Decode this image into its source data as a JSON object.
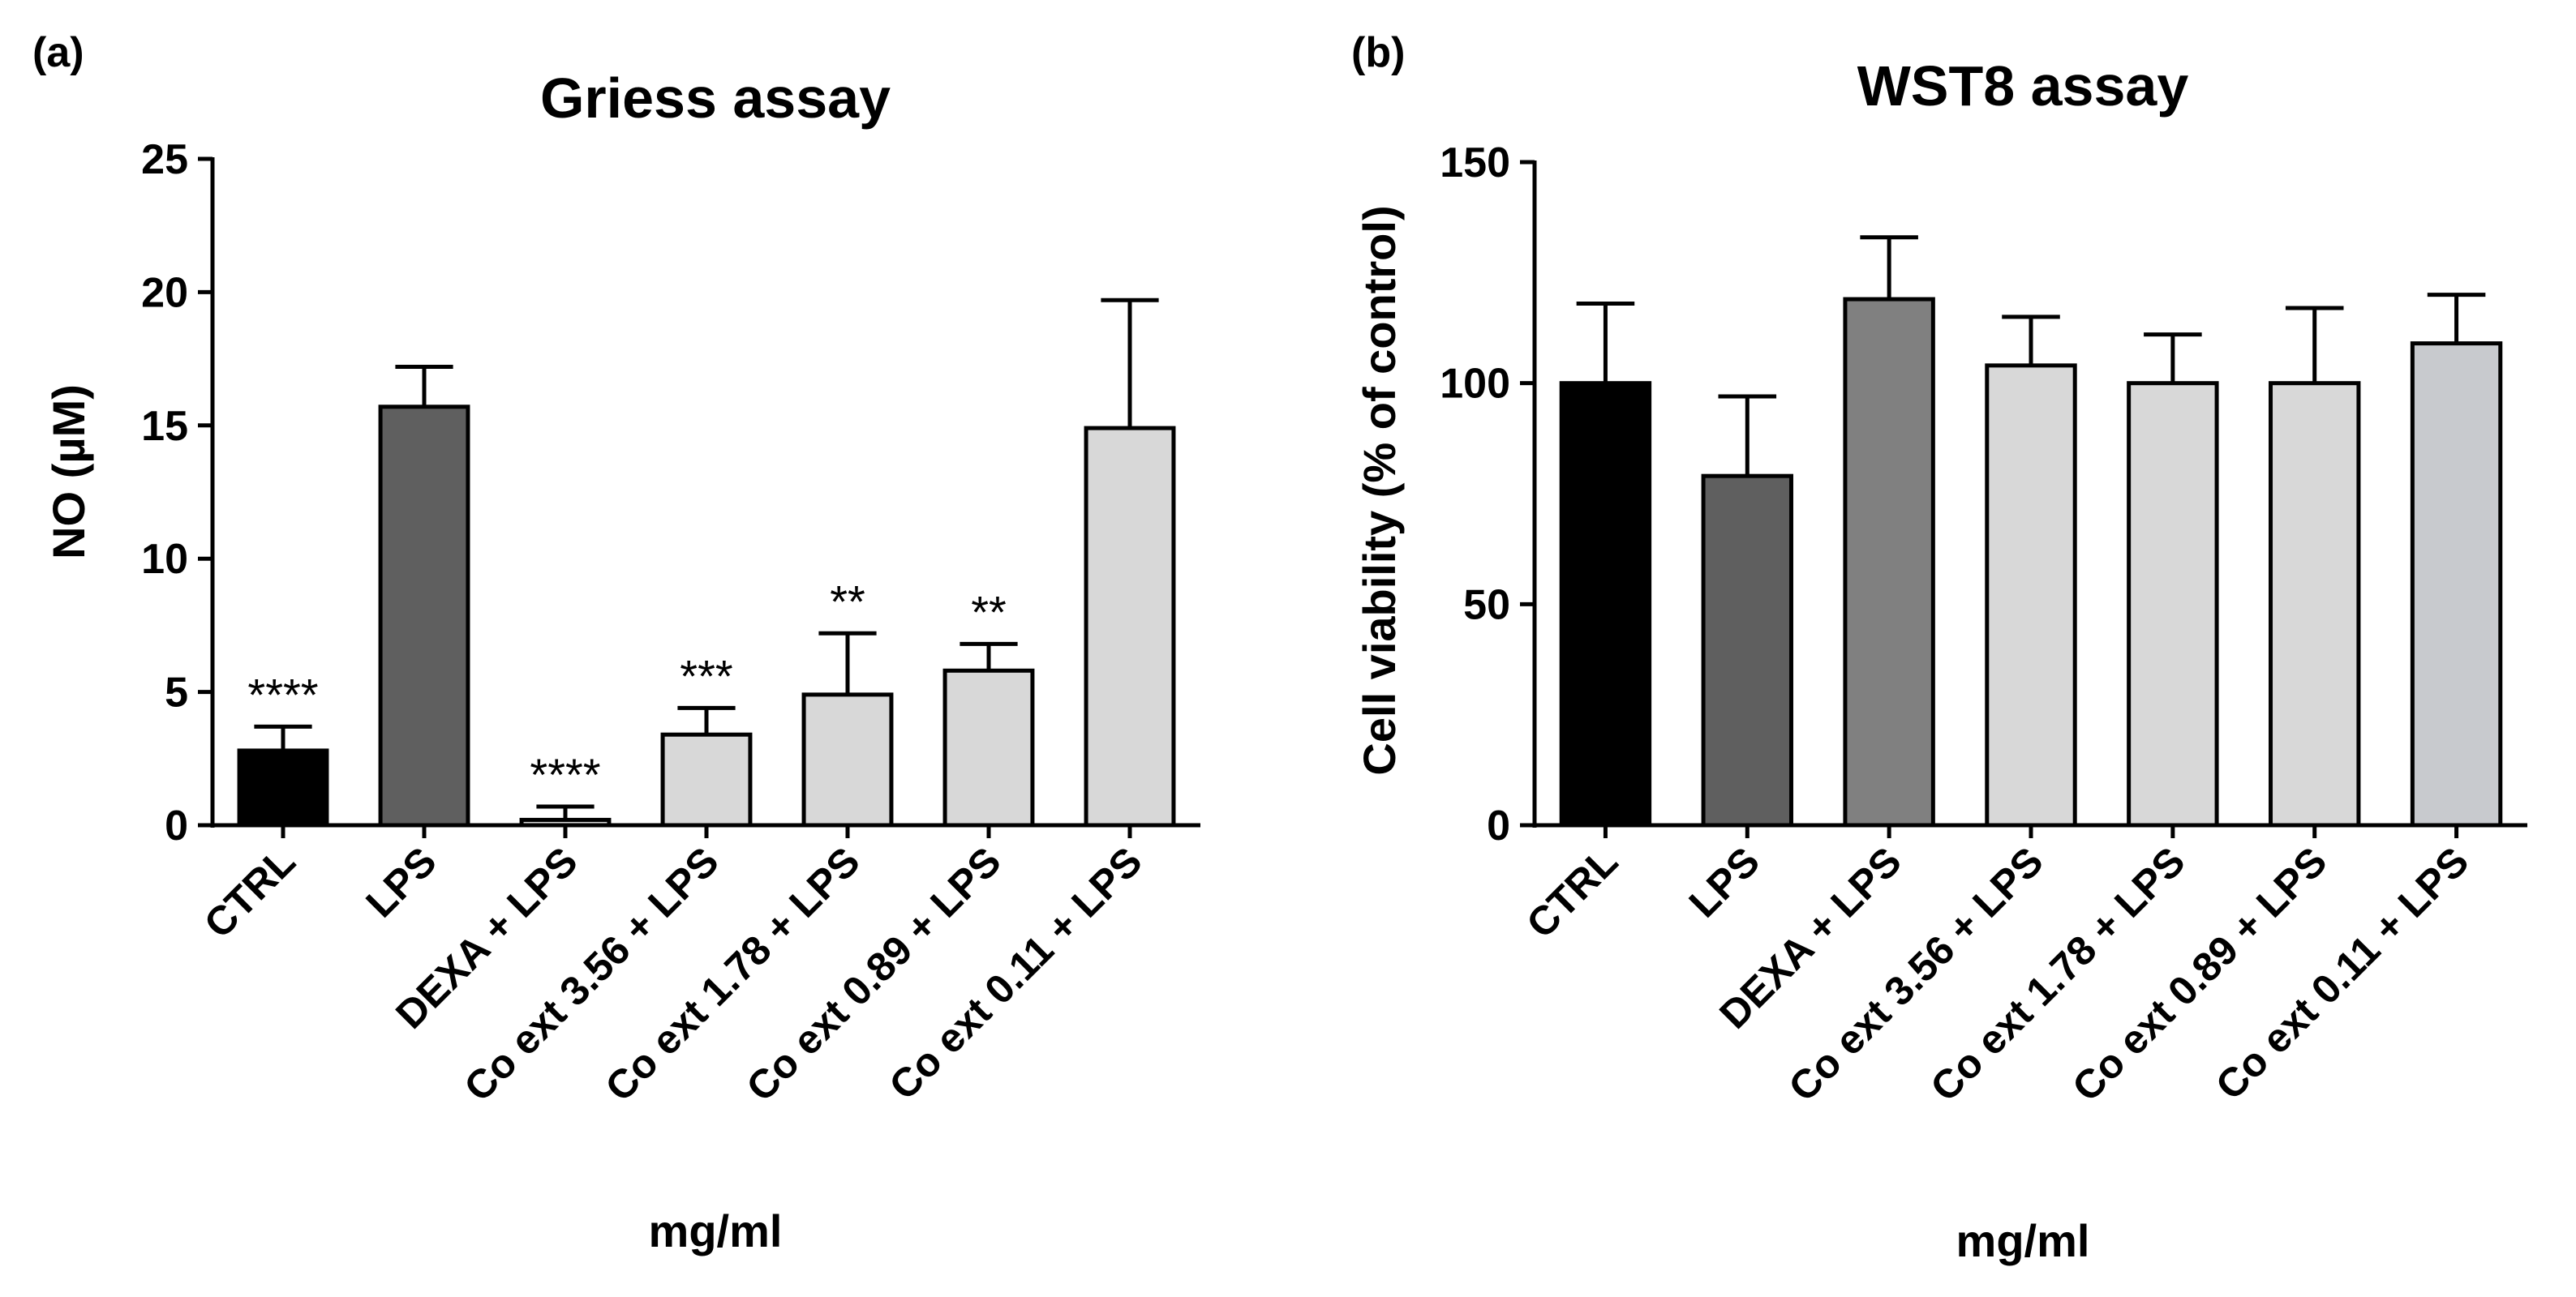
{
  "chart_data": [
    {
      "panel_label": "(a)",
      "type": "bar",
      "title": "Griess assay",
      "xlabel": "mg/ml",
      "ylabel": "NO (µM)",
      "ylim": [
        0,
        25
      ],
      "yticks": [
        0,
        5,
        10,
        15,
        20,
        25
      ],
      "categories": [
        "CTRL",
        "LPS",
        "DEXA + LPS",
        "Co ext 3.56 + LPS",
        "Co ext 1.78 + LPS",
        "Co ext 0.89 + LPS",
        "Co ext 0.11 + LPS"
      ],
      "values": [
        2.8,
        15.7,
        0.2,
        3.4,
        4.9,
        5.8,
        14.9
      ],
      "errors": [
        0.9,
        1.5,
        0.5,
        1.0,
        2.3,
        1.0,
        4.8
      ],
      "significance": [
        "****",
        "",
        "****",
        "***",
        "**",
        "**",
        ""
      ],
      "colors": [
        "#000000",
        "#5f5f5f",
        "#d8d8d8",
        "#d8d8d8",
        "#d8d8d8",
        "#d8d8d8",
        "#d8d8d8"
      ]
    },
    {
      "panel_label": "(b)",
      "type": "bar",
      "title": "WST8 assay",
      "xlabel": "mg/ml",
      "ylabel": "Cell viability (%  of control)",
      "ylim": [
        0,
        150
      ],
      "yticks": [
        0,
        50,
        100,
        150
      ],
      "categories": [
        "CTRL",
        "LPS",
        "DEXA + LPS",
        "Co ext 3.56 + LPS",
        "Co ext 1.78 + LPS",
        "Co ext 0.89 + LPS",
        "Co ext 0.11 + LPS"
      ],
      "values": [
        100,
        79,
        119,
        104,
        100,
        100,
        109
      ],
      "errors": [
        18,
        18,
        14,
        11,
        11,
        17,
        11
      ],
      "significance": [
        "",
        "",
        "",
        "",
        "",
        "",
        ""
      ],
      "colors": [
        "#000000",
        "#5f5f5f",
        "#808080",
        "#d8d8d8",
        "#d8d8d8",
        "#d8d8d8",
        "#c8cace"
      ]
    }
  ]
}
